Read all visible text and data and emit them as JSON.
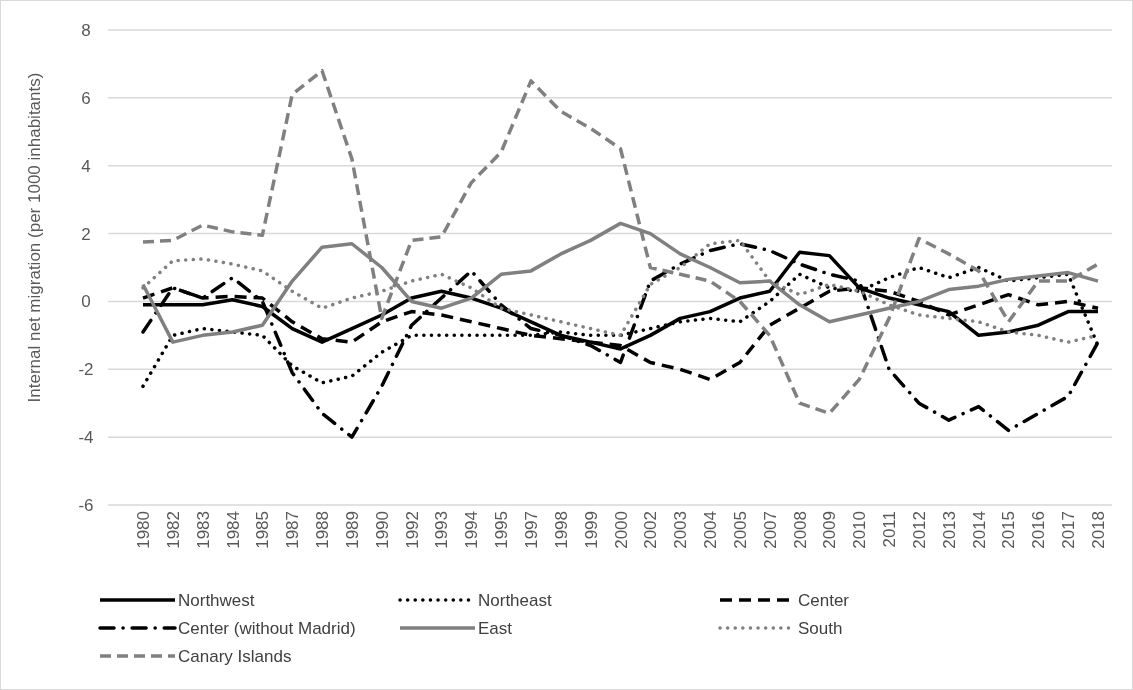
{
  "chart_data": {
    "type": "line",
    "ylabel": "Internal net migration (per 1000 inhabitants)",
    "categories": [
      "1980",
      "1982",
      "1983",
      "1984",
      "1985",
      "1987",
      "1988",
      "1989",
      "1990",
      "1992",
      "1993",
      "1994",
      "1995",
      "1997",
      "1998",
      "1999",
      "2000",
      "2002",
      "2003",
      "2004",
      "2005",
      "2007",
      "2008",
      "2009",
      "2010",
      "2011",
      "2012",
      "2013",
      "2014",
      "2015",
      "2016",
      "2017",
      "2018"
    ],
    "ylim": [
      -6,
      8
    ],
    "yticks": [
      -6,
      -4,
      -2,
      0,
      2,
      4,
      6,
      8
    ],
    "grid": "y",
    "legend": "bottom",
    "series": [
      {
        "name": "Northwest",
        "color": "#000000",
        "line_style": "solid",
        "values": [
          -0.1,
          -0.1,
          -0.1,
          0.05,
          -0.15,
          -0.8,
          -1.2,
          -0.8,
          -0.4,
          0.1,
          0.3,
          0.1,
          -0.2,
          -0.6,
          -1.0,
          -1.2,
          -1.4,
          -1.0,
          -0.5,
          -0.3,
          0.1,
          0.3,
          1.45,
          1.35,
          0.4,
          0.1,
          -0.1,
          -0.3,
          -1.0,
          -0.9,
          -0.7,
          -0.3,
          -0.3
        ]
      },
      {
        "name": "Northeast",
        "color": "#000000",
        "line_style": "dotted",
        "values": [
          -2.5,
          -1.0,
          -0.8,
          -0.9,
          -1.0,
          -1.9,
          -2.4,
          -2.2,
          -1.5,
          -1.0,
          -1.0,
          -1.0,
          -1.0,
          -1.0,
          -0.9,
          -1.0,
          -1.0,
          -0.8,
          -0.6,
          -0.5,
          -0.6,
          0.0,
          0.8,
          0.4,
          0.3,
          0.7,
          1.0,
          0.7,
          1.0,
          0.6,
          0.7,
          0.8,
          -1.3
        ]
      },
      {
        "name": "Center",
        "color": "#000000",
        "line_style": "dashed",
        "values": [
          0.1,
          0.4,
          0.1,
          0.15,
          0.1,
          -0.6,
          -1.1,
          -1.2,
          -0.6,
          -0.3,
          -0.4,
          -0.6,
          -0.8,
          -1.0,
          -1.1,
          -1.2,
          -1.3,
          -1.8,
          -2.0,
          -2.3,
          -1.8,
          -0.7,
          -0.2,
          0.3,
          0.4,
          0.3,
          0.0,
          -0.4,
          -0.1,
          0.2,
          -0.1,
          0.0,
          -0.2
        ]
      },
      {
        "name": "Center (without Madrid)",
        "color": "#000000",
        "line_style": "dashdot",
        "values": [
          -0.9,
          0.4,
          0.1,
          0.7,
          0.0,
          -2.1,
          -3.3,
          -4.0,
          -2.5,
          -0.7,
          0.1,
          0.9,
          -0.1,
          -0.8,
          -1.0,
          -1.3,
          -1.8,
          0.6,
          1.1,
          1.5,
          1.7,
          1.5,
          1.1,
          0.8,
          0.6,
          -2.0,
          -3.0,
          -3.5,
          -3.1,
          -3.8,
          -3.3,
          -2.8,
          -1.2
        ]
      },
      {
        "name": "East",
        "color": "#808080",
        "line_style": "solid",
        "values": [
          0.5,
          -1.2,
          -1.0,
          -0.9,
          -0.7,
          0.6,
          1.6,
          1.7,
          1.0,
          0.0,
          -0.2,
          0.1,
          0.8,
          0.9,
          1.4,
          1.8,
          2.3,
          2.0,
          1.4,
          1.0,
          0.55,
          0.6,
          -0.1,
          -0.6,
          -0.4,
          -0.2,
          0.0,
          0.35,
          0.45,
          0.65,
          0.75,
          0.85,
          0.6
        ]
      },
      {
        "name": "South",
        "color": "#808080",
        "line_style": "dotted",
        "values": [
          0.4,
          1.2,
          1.25,
          1.1,
          0.9,
          0.3,
          -0.2,
          0.1,
          0.3,
          0.6,
          0.8,
          0.4,
          -0.2,
          -0.4,
          -0.6,
          -0.8,
          -1.0,
          0.5,
          1.0,
          1.7,
          1.8,
          0.6,
          0.2,
          0.5,
          0.3,
          -0.1,
          -0.4,
          -0.5,
          -0.6,
          -0.9,
          -1.0,
          -1.2,
          -1.0
        ]
      },
      {
        "name": "Canary Islands",
        "color": "#808080",
        "line_style": "dashed",
        "values": [
          1.75,
          1.8,
          2.25,
          2.05,
          1.95,
          6.1,
          6.8,
          4.2,
          -0.5,
          1.8,
          1.9,
          3.5,
          4.4,
          6.5,
          5.6,
          5.1,
          4.5,
          1.0,
          0.8,
          0.6,
          0.0,
          -1.0,
          -3.0,
          -3.3,
          -2.3,
          -0.5,
          1.85,
          1.4,
          0.9,
          -0.6,
          0.6,
          0.6,
          1.1
        ]
      }
    ]
  }
}
